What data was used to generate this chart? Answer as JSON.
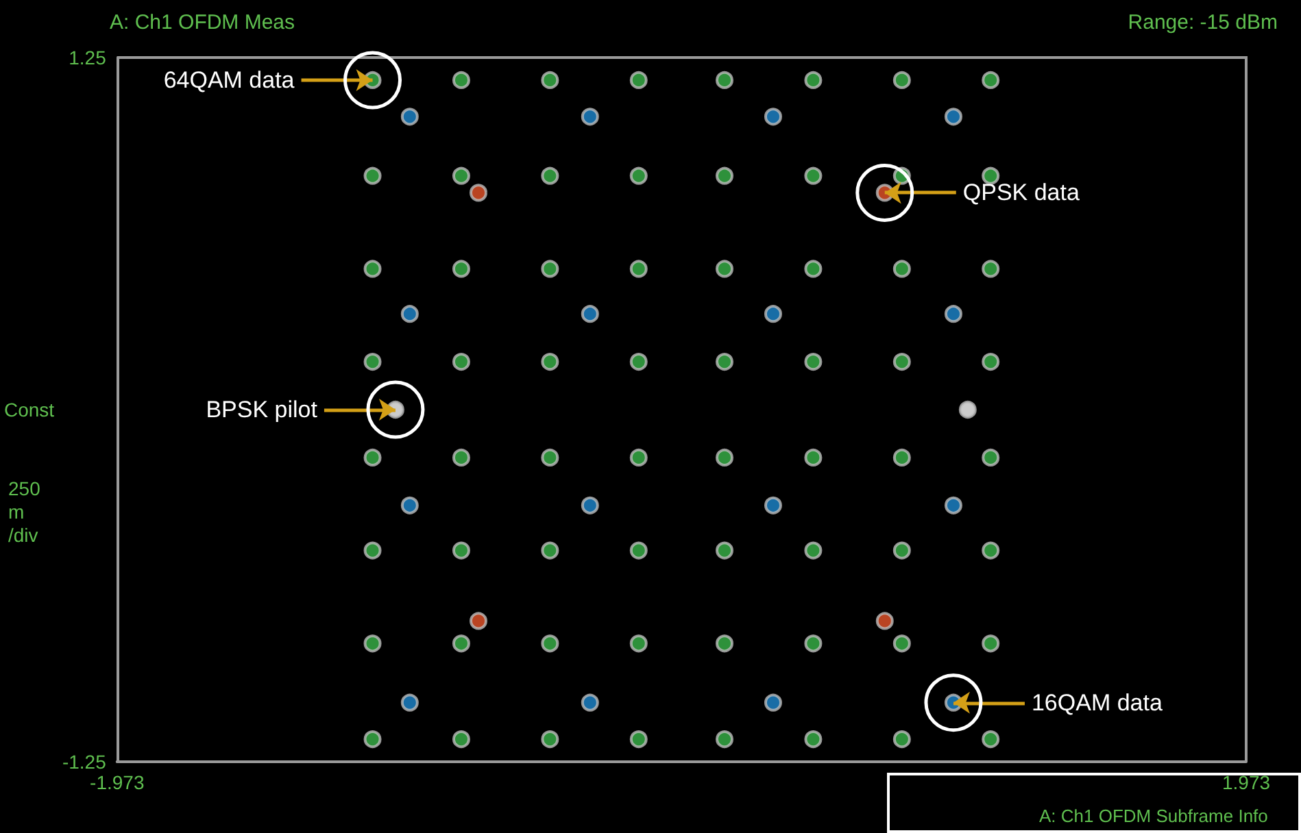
{
  "chart_data": {
    "type": "scatter",
    "title": "A: Ch1 OFDM Meas",
    "subtitle": "Range: -15 dBm",
    "ylabel": "Const",
    "xlim": [
      -1.973,
      1.973
    ],
    "xticks": [
      -1.973,
      1.973
    ],
    "ylim": [
      -1.25,
      1.25
    ],
    "yticks": [
      -1.25,
      1.25
    ],
    "marker": "circle",
    "series": [
      {
        "color": "#3ab54a",
        "x": [
          -1.08,
          -0.77,
          -0.46,
          -0.15,
          0.15,
          0.46,
          0.77,
          1.08,
          -1.08,
          -0.77,
          -0.46,
          -0.15,
          0.15,
          0.46,
          0.77,
          1.08,
          -1.08,
          -0.77,
          -0.46,
          -0.15,
          0.15,
          0.46,
          0.77,
          1.08,
          -1.08,
          -0.77,
          -0.46,
          -0.15,
          0.15,
          0.46,
          0.77,
          1.08,
          -1.08,
          -0.77,
          -0.46,
          -0.15,
          0.15,
          0.46,
          0.77,
          1.08,
          -1.08,
          -0.77,
          -0.46,
          -0.15,
          0.15,
          0.46,
          0.77,
          1.08,
          -1.08,
          -0.77,
          -0.46,
          -0.15,
          0.15,
          0.46,
          0.77,
          1.08,
          -1.08,
          -0.77,
          -0.46,
          -0.15,
          0.15,
          0.46,
          0.77,
          1.08
        ],
        "values": [
          1.17,
          1.17,
          1.17,
          1.17,
          1.17,
          1.17,
          1.17,
          1.17,
          0.83,
          0.83,
          0.83,
          0.83,
          0.83,
          0.83,
          0.83,
          0.83,
          0.5,
          0.5,
          0.5,
          0.5,
          0.5,
          0.5,
          0.5,
          0.5,
          0.17,
          0.17,
          0.17,
          0.17,
          0.17,
          0.17,
          0.17,
          0.17,
          -0.17,
          -0.17,
          -0.17,
          -0.17,
          -0.17,
          -0.17,
          -0.17,
          -0.17,
          -0.5,
          -0.5,
          -0.5,
          -0.5,
          -0.5,
          -0.5,
          -0.5,
          -0.5,
          -0.83,
          -0.83,
          -0.83,
          -0.83,
          -0.83,
          -0.83,
          -0.83,
          -0.83,
          -1.17,
          -1.17,
          -1.17,
          -1.17,
          -1.17,
          -1.17,
          -1.17,
          -1.17
        ]
      },
      {
        "color": "#1e88d0",
        "x": [
          -0.95,
          -0.32,
          0.32,
          0.95,
          -0.95,
          -0.32,
          0.32,
          0.95,
          -0.95,
          -0.32,
          0.32,
          0.95,
          -0.95,
          -0.32,
          0.32,
          0.95
        ],
        "values": [
          1.04,
          1.04,
          1.04,
          1.04,
          0.34,
          0.34,
          0.34,
          0.34,
          -0.34,
          -0.34,
          -0.34,
          -0.34,
          -1.04,
          -1.04,
          -1.04,
          -1.04
        ]
      },
      {
        "color": "#e8552b",
        "x": [
          -0.71,
          0.71,
          -0.71,
          0.71
        ],
        "values": [
          0.77,
          0.77,
          -0.75,
          -0.75
        ]
      },
      {
        "color": "#ffffff",
        "x": [
          -1.0,
          1.0
        ],
        "values": [
          0,
          0
        ]
      }
    ],
    "annotations": [
      {
        "text": "64QAM data",
        "x": -1.08,
        "y": 1.17
      },
      {
        "text": "QPSK data",
        "x": 0.71,
        "y": 0.77
      },
      {
        "text": "BPSK pilot",
        "x": -1.0,
        "y": 0
      },
      {
        "text": "16QAM data",
        "x": 0.95,
        "y": -1.04
      },
      "250 m /div",
      "A: Ch1 OFDM Subframe Info"
    ]
  }
}
